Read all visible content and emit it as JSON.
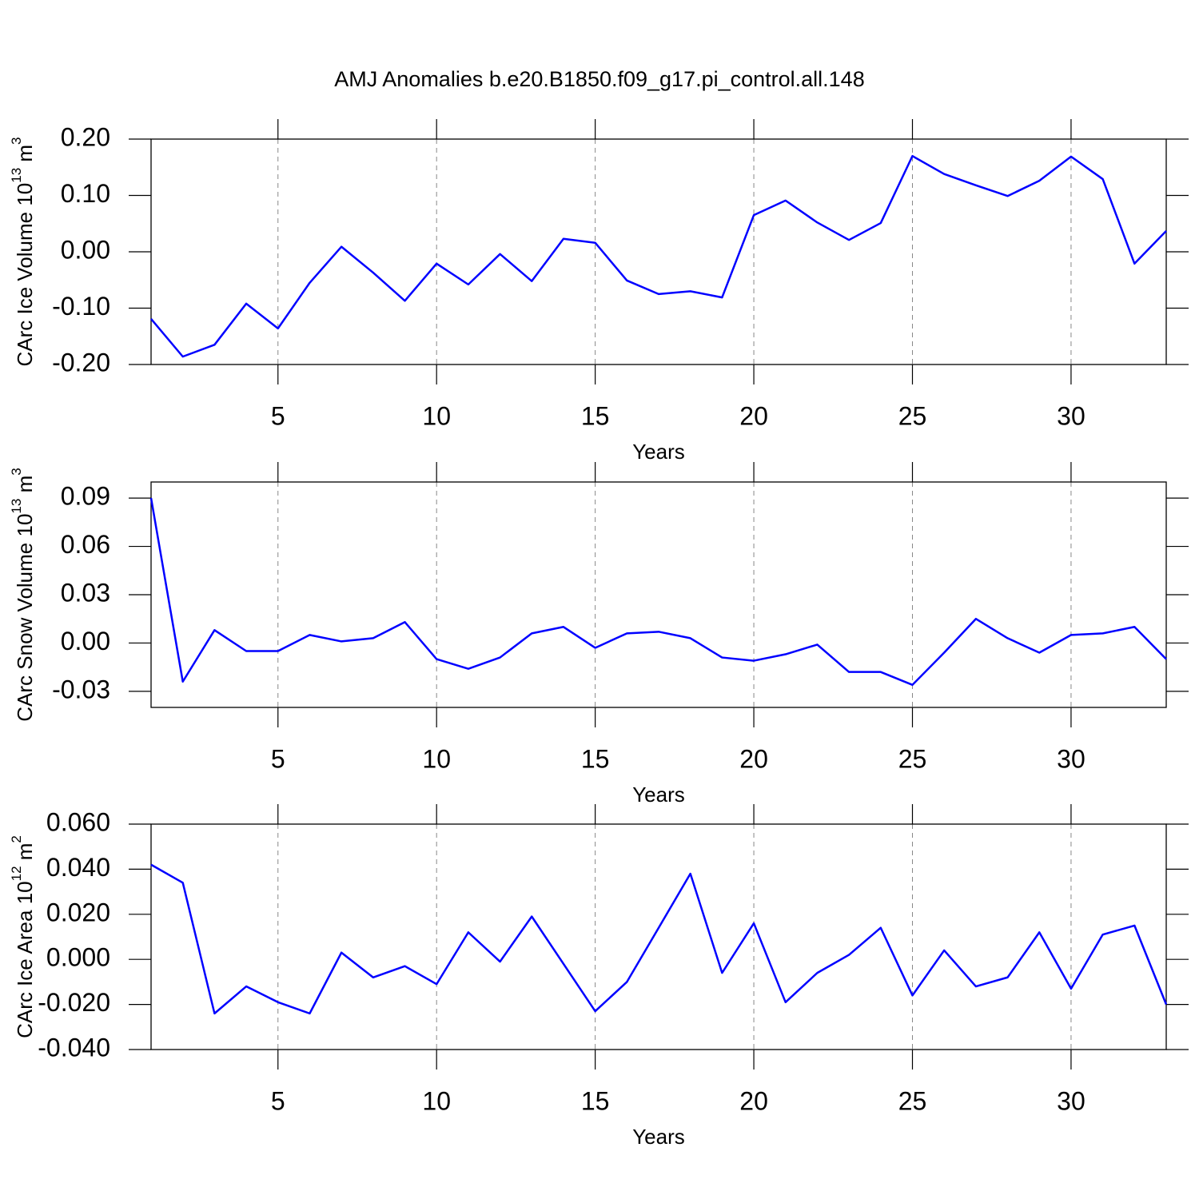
{
  "chart_data": [
    {
      "type": "line",
      "title": "AMJ Anomalies b.e20.B1850.f09_g17.pi_control.all.148",
      "ylabel": [
        "CArc Ice Volume 10",
        "13",
        " m",
        "3"
      ],
      "xlabel": "Years",
      "color": "#0000ff",
      "grid": "x",
      "x": [
        1,
        2,
        3,
        4,
        5,
        6,
        7,
        8,
        9,
        10,
        11,
        12,
        13,
        14,
        15,
        16,
        17,
        18,
        19,
        20,
        21,
        22,
        23,
        24,
        25,
        26,
        27,
        28,
        29,
        30,
        31,
        32,
        33
      ],
      "values": [
        -0.119,
        -0.186,
        -0.165,
        -0.092,
        -0.136,
        -0.055,
        0.009,
        -0.037,
        -0.087,
        -0.021,
        -0.058,
        -0.004,
        -0.052,
        0.023,
        0.016,
        -0.051,
        -0.075,
        -0.07,
        -0.081,
        0.065,
        0.091,
        0.052,
        0.021,
        0.051,
        0.17,
        0.138,
        0.118,
        0.099,
        0.126,
        0.169,
        0.129,
        -0.021,
        0.037
      ],
      "xlim": [
        1,
        33
      ],
      "xticks": [
        5,
        10,
        15,
        20,
        25,
        30
      ],
      "ylim": [
        -0.2,
        0.2
      ],
      "yticks": [
        {
          "value": -0.2,
          "label": "-0.20"
        },
        {
          "value": -0.1,
          "label": "-0.10"
        },
        {
          "value": 0,
          "label": "0.00"
        },
        {
          "value": 0.1,
          "label": "0.10"
        },
        {
          "value": 0.2,
          "label": "0.20"
        }
      ]
    },
    {
      "type": "line",
      "ylabel": [
        "CArc Snow Volume 10",
        "13",
        " m",
        "3"
      ],
      "xlabel": "Years",
      "color": "#0000ff",
      "grid": "x",
      "x": [
        1,
        2,
        3,
        4,
        5,
        6,
        7,
        8,
        9,
        10,
        11,
        12,
        13,
        14,
        15,
        16,
        17,
        18,
        19,
        20,
        21,
        22,
        23,
        24,
        25,
        26,
        27,
        28,
        29,
        30,
        31,
        32,
        33
      ],
      "values": [
        0.09,
        -0.024,
        0.008,
        -0.005,
        -0.005,
        0.005,
        0.001,
        0.003,
        0.013,
        -0.01,
        -0.016,
        -0.009,
        0.006,
        0.01,
        -0.003,
        0.006,
        0.007,
        0.003,
        -0.009,
        -0.011,
        -0.007,
        -0.001,
        -0.018,
        -0.018,
        -0.026,
        -0.006,
        0.015,
        0.003,
        -0.006,
        0.005,
        0.006,
        0.01,
        -0.01
      ],
      "xlim": [
        1,
        33
      ],
      "xticks": [
        5,
        10,
        15,
        20,
        25,
        30
      ],
      "ylim": [
        -0.04,
        0.1
      ],
      "yticks": [
        -0.03,
        {
          "value": 0,
          "label": "0.00"
        },
        0.03,
        0.06,
        0.09
      ]
    },
    {
      "type": "line",
      "ylabel": [
        "CArc Ice Area 10",
        "12",
        " m",
        "2"
      ],
      "xlabel": "Years",
      "color": "#0000ff",
      "grid": "x",
      "x": [
        1,
        2,
        3,
        4,
        5,
        6,
        7,
        8,
        9,
        10,
        11,
        12,
        13,
        14,
        15,
        16,
        17,
        18,
        19,
        20,
        21,
        22,
        23,
        24,
        25,
        26,
        27,
        28,
        29,
        30,
        31,
        32,
        33
      ],
      "values": [
        0.042,
        0.034,
        -0.024,
        -0.012,
        -0.019,
        -0.024,
        0.003,
        -0.008,
        -0.003,
        -0.011,
        0.012,
        -0.001,
        0.019,
        -0.002,
        -0.023,
        -0.01,
        0.014,
        0.038,
        -0.006,
        0.016,
        -0.019,
        -0.006,
        0.002,
        0.014,
        -0.016,
        0.004,
        -0.012,
        -0.008,
        0.012,
        -0.013,
        0.011,
        0.015,
        -0.02
      ],
      "xlim": [
        1,
        33
      ],
      "xticks": [
        5,
        10,
        15,
        20,
        25,
        30
      ],
      "ylim": [
        -0.04,
        0.06
      ],
      "yticks": [
        {
          "value": -0.04,
          "label": "-0.040"
        },
        {
          "value": -0.02,
          "label": "-0.020"
        },
        {
          "value": 0,
          "label": "0.000"
        },
        {
          "value": 0.02,
          "label": "0.020"
        },
        {
          "value": 0.04,
          "label": "0.040"
        },
        {
          "value": 0.06,
          "label": "0.060"
        }
      ]
    }
  ]
}
